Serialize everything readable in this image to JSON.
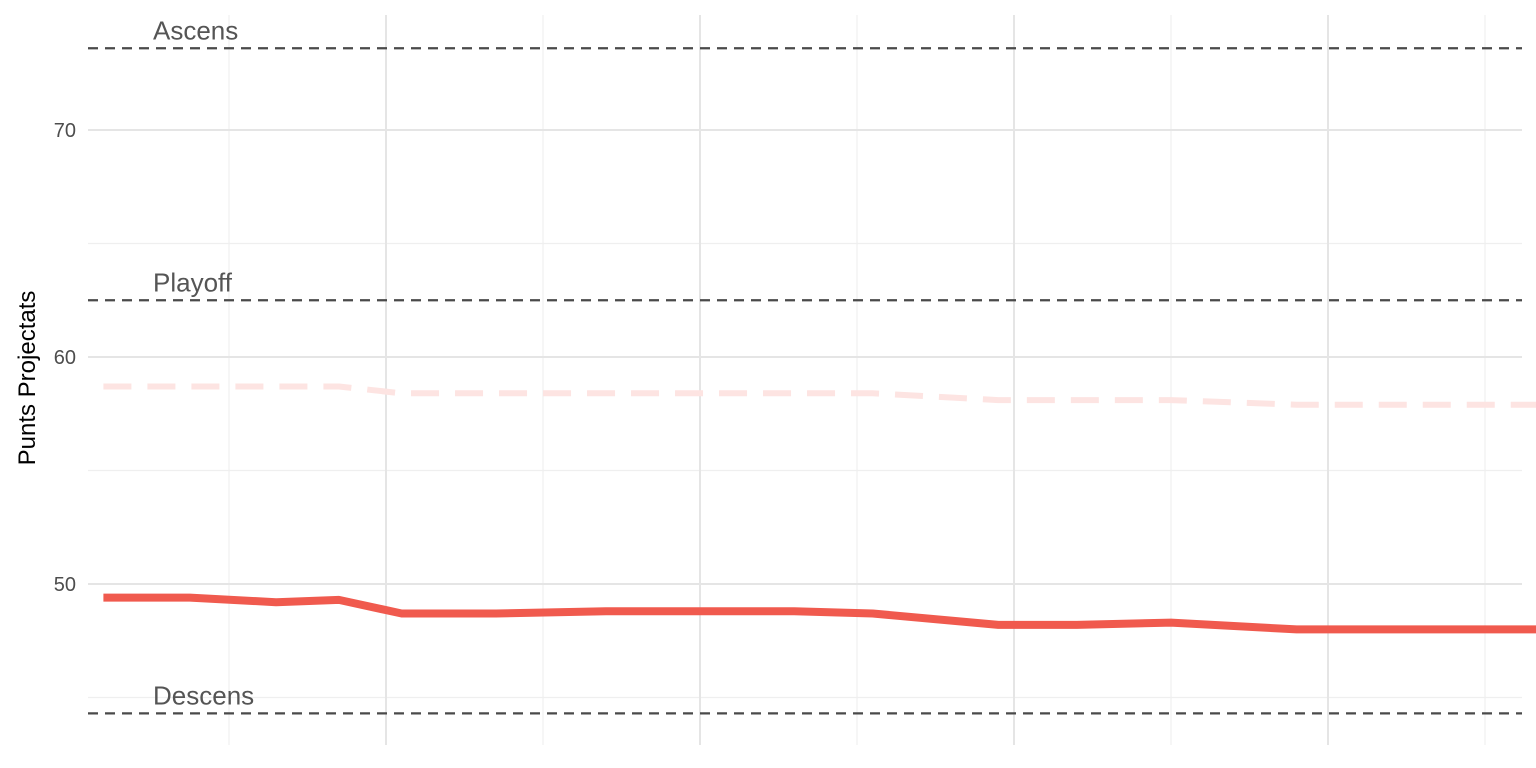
{
  "chart_data": {
    "type": "line",
    "title": "",
    "xlabel": "",
    "ylabel": "Punts Projectats",
    "ylim": [
      44,
      74.5
    ],
    "y_ticks": [
      50,
      60,
      70
    ],
    "y_tick_labels": [
      "50",
      "60",
      "70"
    ],
    "y_minor_ticks": [
      45,
      55,
      65
    ],
    "x_range": [
      0.8,
      10.3
    ],
    "x_major_ticks": [
      3,
      5,
      7,
      9
    ],
    "x_minor_ticks": [
      2,
      4,
      6,
      8,
      10
    ],
    "grid": true,
    "legend": "none",
    "reference_lines": [
      {
        "label": "Ascens",
        "y": 73.6
      },
      {
        "label": "Playoff",
        "y": 62.5
      },
      {
        "label": "Descens",
        "y": 44.3
      }
    ],
    "series": [
      {
        "style": "solid",
        "color": "#f05a4e",
        "x": [
          1.2,
          1.75,
          2.3,
          2.7,
          3.1,
          3.7,
          4.4,
          5.0,
          5.6,
          6.1,
          6.9,
          7.4,
          8.0,
          8.8,
          9.2,
          10.0,
          10.5
        ],
        "y": [
          49.4,
          49.4,
          49.2,
          49.3,
          48.7,
          48.7,
          48.8,
          48.8,
          48.8,
          48.7,
          48.2,
          48.2,
          48.3,
          48.0,
          48.0,
          48.0,
          48.0
        ]
      },
      {
        "style": "dashed",
        "color": "#fde4e2",
        "x": [
          1.2,
          2.7,
          3.1,
          3.7,
          4.4,
          5.0,
          5.6,
          6.1,
          6.9,
          7.4,
          8.0,
          8.8,
          9.2,
          10.0,
          10.5
        ],
        "y": [
          58.7,
          58.7,
          58.4,
          58.4,
          58.4,
          58.4,
          58.4,
          58.4,
          58.1,
          58.1,
          58.1,
          57.9,
          57.9,
          57.9,
          57.9
        ]
      }
    ]
  }
}
